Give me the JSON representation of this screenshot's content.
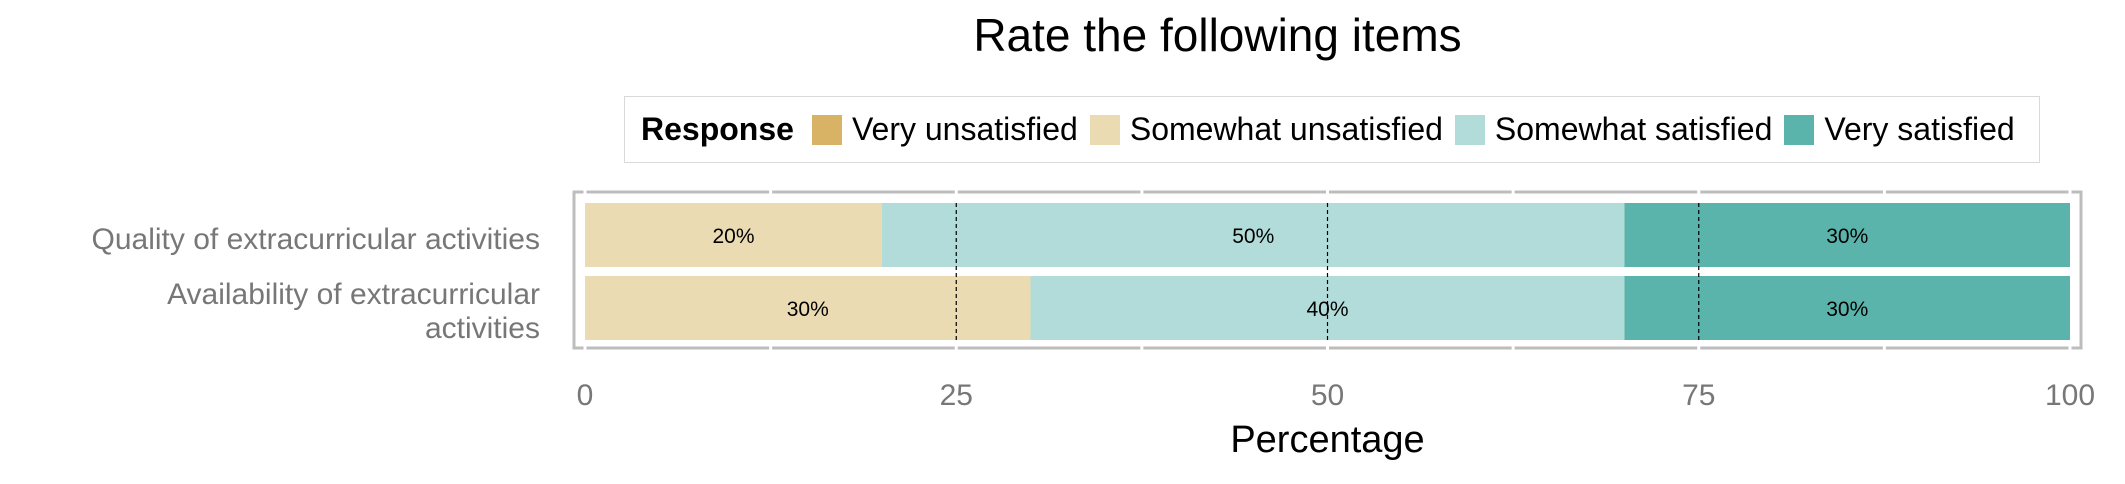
{
  "chart_data": {
    "type": "bar",
    "orientation": "horizontal",
    "stacked": true,
    "title": "Rate the following items",
    "xlabel": "Percentage",
    "ylabel": "",
    "xlim": [
      0,
      100
    ],
    "xticks": [
      "0",
      "25",
      "50",
      "75",
      "100"
    ],
    "categories": [
      [
        "Quality of extracurricular activities"
      ],
      [
        "Availability of extracurricular",
        "activities"
      ]
    ],
    "legend": {
      "title": "Response",
      "placement": "top",
      "items": [
        "Very unsatisfied",
        "Somewhat unsatisfied",
        "Somewhat satisfied",
        "Very satisfied"
      ]
    },
    "series": [
      {
        "name": "Very unsatisfied",
        "color": "#d8b365",
        "values": [
          0,
          0
        ],
        "labels": [
          "",
          ""
        ]
      },
      {
        "name": "Somewhat unsatisfied",
        "color": "#ebdbb3",
        "values": [
          20,
          30
        ],
        "labels": [
          "20%",
          "30%"
        ]
      },
      {
        "name": "Somewhat satisfied",
        "color": "#b2dcd9",
        "values": [
          50,
          40
        ],
        "labels": [
          "50%",
          "40%"
        ]
      },
      {
        "name": "Very satisfied",
        "color": "#5ab4ac",
        "values": [
          30,
          30
        ],
        "labels": [
          "30%",
          "30%"
        ]
      }
    ],
    "grid": true,
    "reference_lines": [
      25,
      50,
      75
    ]
  }
}
